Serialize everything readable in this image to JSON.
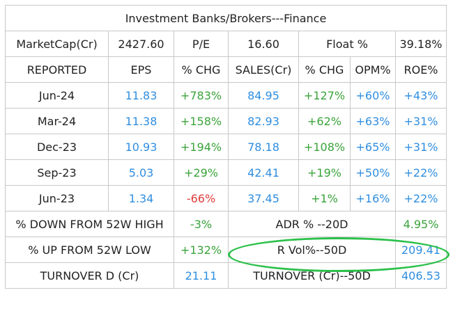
{
  "title": "Investment Banks/Brokers---Finance",
  "summary": {
    "marketcap_label": "MarketCap(Cr)",
    "marketcap_value": "2427.60",
    "pe_label": "P/E",
    "pe_value": "16.60",
    "float_label": "Float %",
    "float_value": "39.18%"
  },
  "headers": [
    "REPORTED",
    "EPS",
    "% CHG",
    "SALES(Cr)",
    "% CHG",
    "OPM%",
    "ROE%"
  ],
  "rows": [
    {
      "reported": "Jun-24",
      "eps": "11.83",
      "eps_chg": "+783%",
      "sales": "84.95",
      "sales_chg": "+127%",
      "opm": "+60%",
      "roe": "+43%"
    },
    {
      "reported": "Mar-24",
      "eps": "11.38",
      "eps_chg": "+158%",
      "sales": "82.93",
      "sales_chg": "+62%",
      "opm": "+63%",
      "roe": "+31%"
    },
    {
      "reported": "Dec-23",
      "eps": "10.93",
      "eps_chg": "+194%",
      "sales": "78.18",
      "sales_chg": "+108%",
      "opm": "+65%",
      "roe": "+31%"
    },
    {
      "reported": "Sep-23",
      "eps": "5.03",
      "eps_chg": "+29%",
      "sales": "42.41",
      "sales_chg": "+19%",
      "opm": "+50%",
      "roe": "+22%"
    },
    {
      "reported": "Jun-23",
      "eps": "1.34",
      "eps_chg": "-66%",
      "sales": "37.45",
      "sales_chg": "+1%",
      "opm": "+16%",
      "roe": "+22%"
    }
  ],
  "stats": {
    "down_52w_label": "% DOWN FROM 52W HIGH",
    "down_52w_value": "-3%",
    "adr_label": "ADR % --20D",
    "adr_value": "4.95%",
    "up_52w_label": "% UP FROM 52W LOW",
    "up_52w_value": "+132%",
    "rvol_label": "R Vol%--50D",
    "rvol_value": "209.41",
    "turnover_d_label": "TURNOVER D (Cr)",
    "turnover_d_value": "21.11",
    "turnover_50d_label": "TURNOVER (Cr)--50D",
    "turnover_50d_value": "406.53"
  },
  "colors": {
    "positive": "#3aa33a",
    "negative": "#e03a3a",
    "value": "#2f8ee0",
    "highlight": "#2bc04a"
  }
}
